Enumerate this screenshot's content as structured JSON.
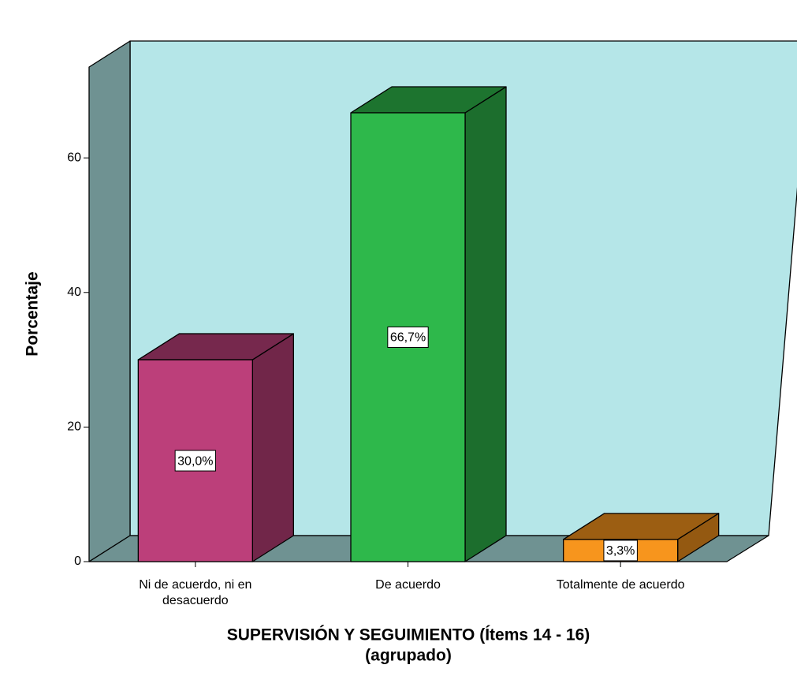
{
  "chart_data": {
    "type": "bar3d",
    "categories": [
      "Ni de acuerdo, ni en desacuerdo",
      "De acuerdo",
      "Totalmente de acuerdo"
    ],
    "values": [
      30.0,
      66.7,
      3.3
    ],
    "value_labels": [
      "30,0%",
      "66,7%",
      "3,3%"
    ],
    "colors": [
      "#bc3f7a",
      "#2eb84b",
      "#f7951d"
    ],
    "ylabel": "Porcentaje",
    "xlabel": [
      "SUPERVISIÓN Y SEGUIMIENTO (Ítems 14 - 16)",
      "(agrupado)"
    ],
    "ylim": [
      0,
      73.5
    ],
    "yticks": [
      0,
      20,
      40,
      60
    ],
    "wall_color": "#b5e6e8",
    "floor_color": "#6f9292"
  }
}
